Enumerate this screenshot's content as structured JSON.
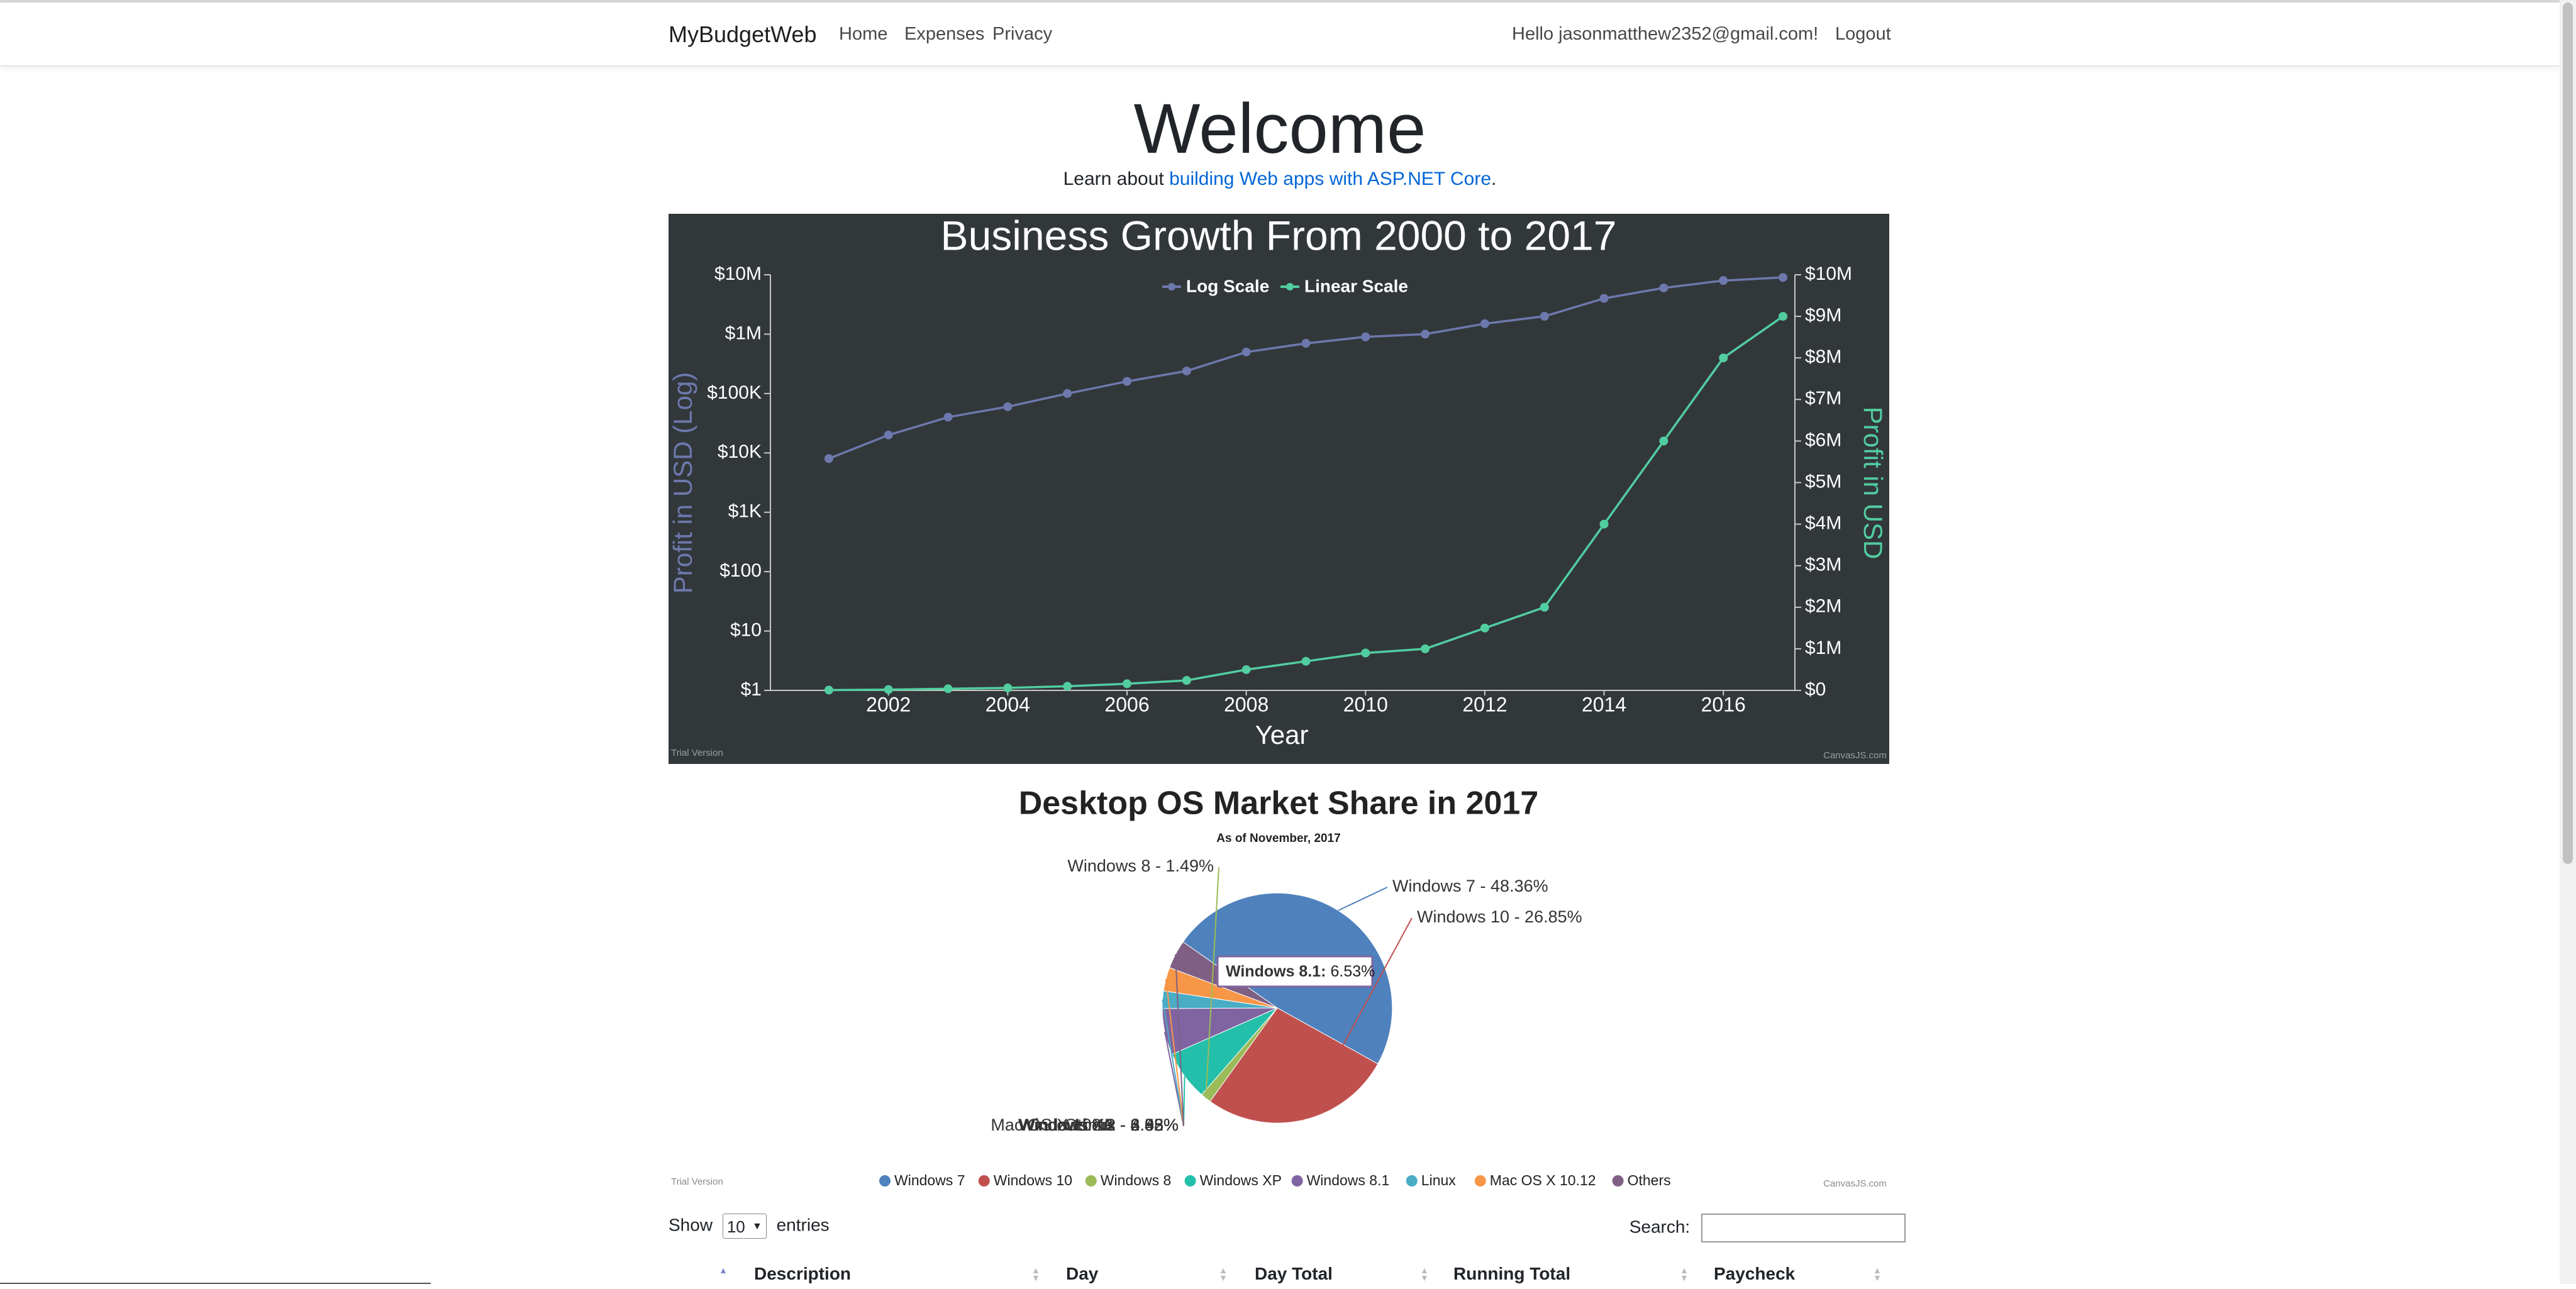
{
  "navbar": {
    "brand": "MyBudgetWeb",
    "links": [
      "Home",
      "Expenses",
      "Privacy"
    ],
    "greeting": "Hello jasonmatthew2352@gmail.com!",
    "logout": "Logout"
  },
  "main": {
    "welcome": "Welcome",
    "learn_prefix": "Learn about ",
    "learn_link": "building Web apps with ASP.NET Core",
    "learn_suffix": "."
  },
  "chart_data": [
    {
      "type": "line",
      "title": "Business Growth From 2000 to 2017",
      "xlabel": "Year",
      "ylabel_left": "Profit in USD (Log)",
      "ylabel_right": "Profit in USD",
      "background": "#32373a",
      "x": [
        2001,
        2002,
        2003,
        2004,
        2005,
        2006,
        2007,
        2008,
        2009,
        2010,
        2011,
        2012,
        2013,
        2014,
        2015,
        2016,
        2017
      ],
      "xlim": [
        2000.02,
        2017.2
      ],
      "x_ticks": [
        "2002",
        "2004",
        "2006",
        "2008",
        "2010",
        "2012",
        "2014",
        "2016"
      ],
      "y_left_ticks": [
        "$1",
        "$10",
        "$100",
        "$1K",
        "$10K",
        "$100K",
        "$1M",
        "$10M"
      ],
      "y_right_ticks": [
        "$0",
        "$1M",
        "$2M",
        "$3M",
        "$4M",
        "$5M",
        "$6M",
        "$7M",
        "$8M",
        "$9M",
        "$10M"
      ],
      "ylim_left_log10": [
        0,
        7
      ],
      "ylim_right": [
        0,
        10000000
      ],
      "series": [
        {
          "name": "Log Scale",
          "axis": "left",
          "color": "#6d78ad",
          "values": [
            8000,
            20000,
            40000,
            60000,
            100000,
            160000,
            240000,
            500000,
            700000,
            900000,
            1000000,
            1500000,
            2000000,
            4000000,
            6000000,
            8000000,
            9000000
          ]
        },
        {
          "name": "Linear Scale",
          "axis": "right",
          "color": "#51cda0",
          "values": [
            8000,
            20000,
            40000,
            60000,
            100000,
            160000,
            240000,
            500000,
            700000,
            900000,
            1000000,
            1500000,
            2000000,
            4000000,
            6000000,
            8000000,
            9000000
          ]
        }
      ],
      "footer_left": "Trial Version",
      "footer_right": "CanvasJS.com"
    },
    {
      "type": "pie",
      "title": "Desktop OS Market Share in 2017",
      "subtitle": "As of November, 2017",
      "slices": [
        {
          "label": "Windows 7",
          "value": 48.36,
          "color": "#4f81bc"
        },
        {
          "label": "Windows 10",
          "value": 26.85,
          "color": "#c0504e"
        },
        {
          "label": "Windows 8",
          "value": 1.49,
          "color": "#9bbb58"
        },
        {
          "label": "Windows XP",
          "value": 6.98,
          "color": "#23bfaa"
        },
        {
          "label": "Windows 8.1",
          "value": 6.53,
          "color": "#8064a1"
        },
        {
          "label": "Linux",
          "value": 2.45,
          "color": "#4aacc5"
        },
        {
          "label": "Mac OS X 10.12",
          "value": 3.32,
          "color": "#f79647"
        },
        {
          "label": "Others",
          "value": 4.03,
          "color": "#7f6084"
        }
      ],
      "tooltip": {
        "label": "Windows 8.1",
        "value": "6.53%"
      },
      "footer_left": "Trial Version",
      "footer_right": "CanvasJS.com"
    }
  ],
  "table": {
    "show_label": "Show",
    "entries_value": "10",
    "entries_label": "entries",
    "search_label": "Search:",
    "columns": [
      "Description",
      "Day",
      "Day Total",
      "Running Total",
      "Paycheck"
    ]
  }
}
